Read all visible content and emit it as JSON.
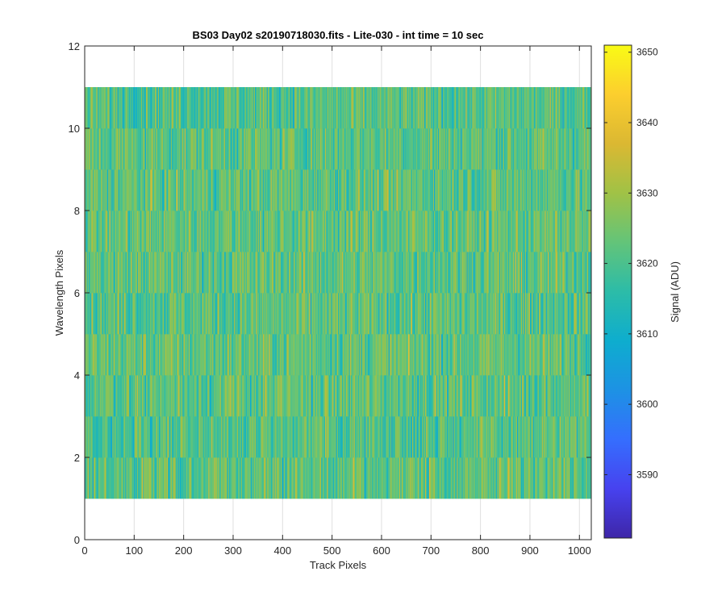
{
  "chart_data": {
    "type": "heatmap",
    "title": "BS03 Day02  s20190718030.fits - Lite-030 - int time = 10 sec",
    "xlabel": "Track Pixels",
    "ylabel": "Wavelength Pixels",
    "xlim": [
      0,
      1024
    ],
    "ylim": [
      0,
      12
    ],
    "xticks": [
      "0",
      "100",
      "200",
      "300",
      "400",
      "500",
      "600",
      "700",
      "800",
      "900",
      "1000"
    ],
    "yticks": [
      "0",
      "2",
      "4",
      "6",
      "8",
      "10",
      "12"
    ],
    "grid": true,
    "data_extent": {
      "x": [
        0,
        1024
      ],
      "y": [
        1,
        11
      ]
    },
    "n_columns": 1024,
    "n_rows": 10,
    "value_range_typical": [
      3605,
      3635
    ],
    "value_mean": 3622,
    "colorbar": {
      "label": "Signal (ADU)",
      "range": [
        3581,
        3651
      ],
      "ticks": [
        "3590",
        "3600",
        "3610",
        "3620",
        "3630",
        "3640",
        "3650"
      ],
      "colormap": "parula"
    }
  }
}
